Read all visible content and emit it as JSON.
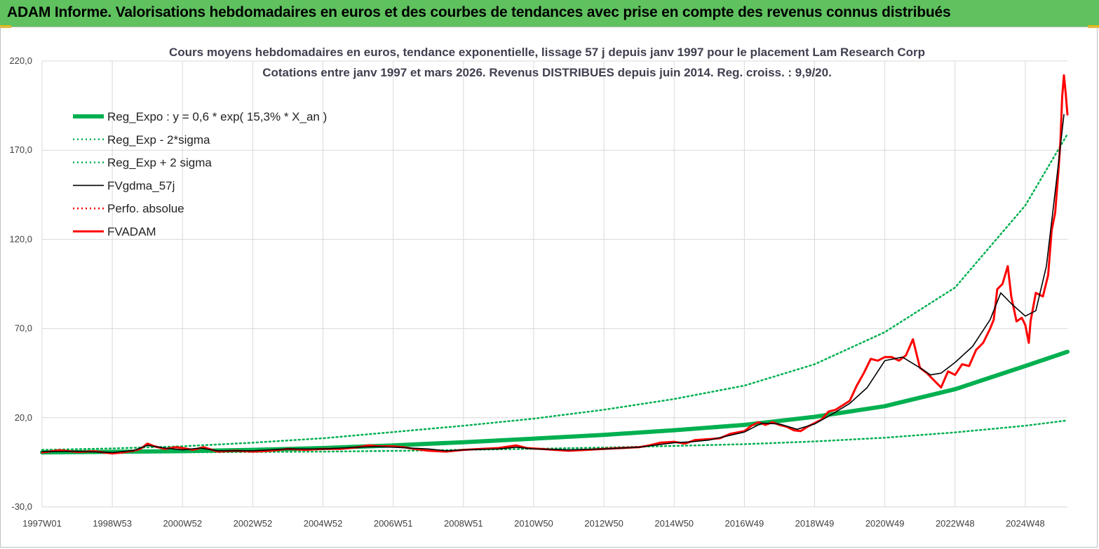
{
  "header": {
    "title": "ADAM Informe. Valorisations hebdomadaires en euros et des courbes de tendances avec prise en compte des revenus connus distribués",
    "background": "#5fc25f",
    "accent": "#f5b800"
  },
  "chart_data": {
    "type": "line",
    "title": "Cours moyens hebdomadaires en euros, tendance exponentielle, lissage 57 j depuis janv 1997 pour le placement Lam Research Corp",
    "subtitle": "Cotations entre janv 1997 et mars 2026. Revenus DISTRIBUES depuis juin 2014. Reg. croiss. : 9,9/20.",
    "xlabel": "",
    "ylabel": "",
    "ylim": [
      -30,
      220
    ],
    "yticks": [
      -30,
      20,
      70,
      120,
      170,
      220
    ],
    "ytick_labels": [
      "-30,0",
      "20,0",
      "70,0",
      "120,0",
      "170,0",
      "220,0"
    ],
    "x_range": [
      1997.0,
      2026.2
    ],
    "xtick_labels": [
      "1997W01",
      "1998W53",
      "2000W52",
      "2002W52",
      "2004W52",
      "2006W51",
      "2008W51",
      "2010W50",
      "2012W50",
      "2014W50",
      "2016W49",
      "2018W49",
      "2020W49",
      "2022W48",
      "2024W48"
    ],
    "xtick_positions": [
      1997.0,
      1999.0,
      2001.0,
      2003.0,
      2005.0,
      2007.0,
      2009.0,
      2011.0,
      2013.0,
      2015.0,
      2017.0,
      2019.0,
      2021.0,
      2023.0,
      2025.0
    ],
    "grid": true,
    "legend_position": "top-left",
    "series": [
      {
        "name": "Reg_Expo : y = 0,6 * exp( 15,3% *  X_an )",
        "color": "#00b050",
        "style": "solid-thick",
        "x": [
          1997.0,
          1999.0,
          2001.0,
          2003.0,
          2005.0,
          2007.0,
          2009.0,
          2011.0,
          2013.0,
          2015.0,
          2017.0,
          2019.0,
          2021.0,
          2023.0,
          2025.0,
          2026.2
        ],
        "y": [
          0.6,
          0.9,
          1.3,
          2.0,
          3.0,
          4.5,
          6.3,
          8.3,
          10.4,
          13.0,
          16.0,
          20.5,
          26.5,
          36.0,
          49.0,
          57.0
        ]
      },
      {
        "name": "Reg_Exp - 2*sigma",
        "color": "#00b050",
        "style": "dotted",
        "x": [
          1997.0,
          1999.0,
          2001.0,
          2003.0,
          2005.0,
          2007.0,
          2009.0,
          2011.0,
          2013.0,
          2015.0,
          2017.0,
          2019.0,
          2021.0,
          2023.0,
          2025.0,
          2026.2
        ],
        "y": [
          0.2,
          0.4,
          0.6,
          0.8,
          1.0,
          1.4,
          2.0,
          2.6,
          3.3,
          4.2,
          5.2,
          6.7,
          8.8,
          11.8,
          15.5,
          18.5
        ]
      },
      {
        "name": "Reg_Exp + 2 sigma",
        "color": "#00b050",
        "style": "dotted",
        "x": [
          1997.0,
          1999.0,
          2001.0,
          2003.0,
          2005.0,
          2007.0,
          2009.0,
          2011.0,
          2013.0,
          2015.0,
          2017.0,
          2019.0,
          2021.0,
          2023.0,
          2025.0,
          2026.2
        ],
        "y": [
          2.0,
          2.8,
          4.0,
          6.0,
          8.5,
          12.0,
          15.5,
          19.5,
          24.5,
          30.5,
          38.0,
          50.0,
          68.0,
          93.0,
          139.0,
          179.0
        ]
      },
      {
        "name": "FVgdma_57j",
        "color": "#000000",
        "style": "solid",
        "x": [
          1997.0,
          1998.0,
          1999.0,
          1999.6,
          2000.0,
          2000.5,
          2001.0,
          2001.5,
          2002.0,
          2003.0,
          2004.0,
          2005.0,
          2006.0,
          2006.5,
          2007.0,
          2008.0,
          2008.5,
          2009.0,
          2010.0,
          2010.5,
          2011.0,
          2012.0,
          2013.0,
          2014.0,
          2015.0,
          2015.5,
          2016.0,
          2017.0,
          2017.5,
          2018.0,
          2018.5,
          2019.0,
          2019.5,
          2020.0,
          2020.5,
          2021.0,
          2021.5,
          2022.0,
          2022.3,
          2022.6,
          2023.0,
          2023.5,
          2024.0,
          2024.3,
          2024.6,
          2025.0,
          2025.3,
          2025.6,
          2025.9,
          2026.1
        ],
        "y": [
          1.0,
          1.2,
          0.5,
          1.6,
          4.5,
          3.0,
          2.0,
          3.0,
          1.5,
          1.5,
          2.5,
          2.5,
          3.5,
          3.8,
          3.5,
          2.5,
          1.5,
          2.0,
          2.5,
          3.5,
          2.5,
          2.0,
          2.5,
          3.5,
          6.0,
          6.5,
          7.5,
          12.0,
          17.0,
          16.5,
          13.5,
          16.5,
          22.0,
          28.0,
          37.0,
          52.0,
          54.0,
          48.0,
          44.0,
          45.0,
          51.0,
          60.0,
          75.0,
          90.0,
          84.0,
          77.0,
          80.0,
          105.0,
          155.0,
          190.0
        ]
      },
      {
        "name": "Perfo. absolue",
        "color": "#ff0000",
        "style": "dotted",
        "x": [],
        "y": []
      },
      {
        "name": "FVADAM",
        "color": "#ff0000",
        "style": "solid-thick",
        "x": [
          1997.0,
          1997.5,
          1998.0,
          1998.5,
          1999.0,
          1999.3,
          1999.6,
          1999.8,
          2000.0,
          2000.2,
          2000.5,
          2000.8,
          2001.0,
          2001.3,
          2001.6,
          2002.0,
          2002.5,
          2003.0,
          2003.5,
          2004.0,
          2004.5,
          2005.0,
          2005.5,
          2006.0,
          2006.3,
          2006.6,
          2007.0,
          2007.3,
          2007.6,
          2008.0,
          2008.5,
          2009.0,
          2009.5,
          2010.0,
          2010.5,
          2010.8,
          2011.2,
          2011.6,
          2012.0,
          2012.5,
          2013.0,
          2013.5,
          2014.0,
          2014.3,
          2014.6,
          2015.0,
          2015.3,
          2015.6,
          2016.0,
          2016.3,
          2016.6,
          2017.0,
          2017.2,
          2017.4,
          2017.6,
          2017.8,
          2018.0,
          2018.2,
          2018.4,
          2018.6,
          2018.8,
          2019.0,
          2019.2,
          2019.4,
          2019.6,
          2019.8,
          2020.0,
          2020.2,
          2020.4,
          2020.6,
          2020.8,
          2021.0,
          2021.2,
          2021.4,
          2021.6,
          2021.8,
          2022.0,
          2022.2,
          2022.4,
          2022.6,
          2022.8,
          2023.0,
          2023.2,
          2023.4,
          2023.6,
          2023.8,
          2024.0,
          2024.1,
          2024.2,
          2024.35,
          2024.5,
          2024.6,
          2024.75,
          2024.9,
          2025.0,
          2025.1,
          2025.15,
          2025.3,
          2025.5,
          2025.65,
          2025.75,
          2025.85,
          2025.95,
          2026.0,
          2026.05,
          2026.1,
          2026.15,
          2026.2
        ],
        "y": [
          0.5,
          1.8,
          0.8,
          1.2,
          0.0,
          0.6,
          1.5,
          2.5,
          5.5,
          4.0,
          2.5,
          3.5,
          3.0,
          2.0,
          3.5,
          1.0,
          1.5,
          1.0,
          1.5,
          2.5,
          2.0,
          2.5,
          2.5,
          3.5,
          4.5,
          4.0,
          4.0,
          3.5,
          2.5,
          1.5,
          1.0,
          2.0,
          2.5,
          3.0,
          4.5,
          3.0,
          2.5,
          2.0,
          1.5,
          2.0,
          2.5,
          3.0,
          3.5,
          4.5,
          6.0,
          6.5,
          5.5,
          7.5,
          8.0,
          8.5,
          11.0,
          12.5,
          15.5,
          17.5,
          16.0,
          17.5,
          16.0,
          15.0,
          13.0,
          12.5,
          15.0,
          17.0,
          19.0,
          23.5,
          24.5,
          27.0,
          29.5,
          38.0,
          45.0,
          53.0,
          52.0,
          54.0,
          54.0,
          52.0,
          55.0,
          64.0,
          48.0,
          45.0,
          41.0,
          37.0,
          46.0,
          44.0,
          50.0,
          49.0,
          58.0,
          62.0,
          70.0,
          75.0,
          92.0,
          95.0,
          105.0,
          88.0,
          74.0,
          76.0,
          72.0,
          62.0,
          74.0,
          90.0,
          88.0,
          100.0,
          125.0,
          135.0,
          160.0,
          175.0,
          200.0,
          212.0,
          202.0,
          190.0
        ]
      }
    ]
  }
}
